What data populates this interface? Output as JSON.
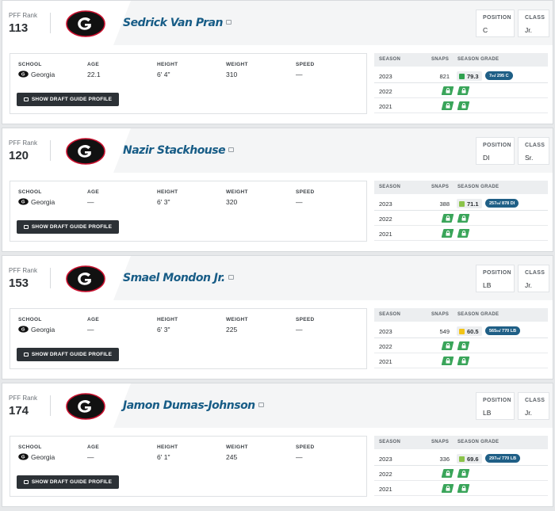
{
  "labels": {
    "pff_rank": "PFF Rank",
    "position": "POSITION",
    "class": "CLASS",
    "school": "SCHOOL",
    "age": "AGE",
    "height": "HEIGHT",
    "weight": "WEIGHT",
    "speed": "SPEED",
    "season": "SEASON",
    "snaps": "SNAPS",
    "season_grade": "SEASON GRADE",
    "draft_button": "SHOW DRAFT GUIDE PROFILE"
  },
  "colors": {
    "name": "#175c86",
    "grade_high": "#2fa14f",
    "grade_mid": "#8bc34a",
    "grade_low": "#f2c417",
    "rank_pill": "#1f5f86",
    "locked": "#3aa55a"
  },
  "players": [
    {
      "rank": "113",
      "name": "Sedrick Van Pran",
      "position": "C",
      "class": "Jr.",
      "school": "Georgia",
      "age": "22.1",
      "height": "6' 4\"",
      "weight": "310",
      "speed": "—",
      "seasons": [
        {
          "year": "2023",
          "snaps": "821",
          "grade": "79.3",
          "grade_color": "#2fa14f",
          "rank_num": "7",
          "rank_sup": "th",
          "rank_rest": " / 295 C"
        },
        {
          "year": "2022",
          "locked": true
        },
        {
          "year": "2021",
          "locked": true
        }
      ]
    },
    {
      "rank": "120",
      "name": "Nazir Stackhouse",
      "position": "DI",
      "class": "Sr.",
      "school": "Georgia",
      "age": "—",
      "height": "6' 3\"",
      "weight": "320",
      "speed": "—",
      "seasons": [
        {
          "year": "2023",
          "snaps": "388",
          "grade": "71.1",
          "grade_color": "#8bc34a",
          "rank_num": "257",
          "rank_sup": "th",
          "rank_rest": " / 878 DI"
        },
        {
          "year": "2022",
          "locked": true
        },
        {
          "year": "2021",
          "locked": true
        }
      ]
    },
    {
      "rank": "153",
      "name": "Smael Mondon Jr.",
      "position": "LB",
      "class": "Jr.",
      "school": "Georgia",
      "age": "—",
      "height": "6' 3\"",
      "weight": "225",
      "speed": "—",
      "seasons": [
        {
          "year": "2023",
          "snaps": "549",
          "grade": "60.5",
          "grade_color": "#f2c417",
          "rank_num": "565",
          "rank_sup": "th",
          "rank_rest": " / 770 LB"
        },
        {
          "year": "2022",
          "locked": true
        },
        {
          "year": "2021",
          "locked": true
        }
      ]
    },
    {
      "rank": "174",
      "name": "Jamon Dumas-Johnson",
      "position": "LB",
      "class": "Jr.",
      "school": "Georgia",
      "age": "—",
      "height": "6' 1\"",
      "weight": "245",
      "speed": "—",
      "seasons": [
        {
          "year": "2023",
          "snaps": "336",
          "grade": "69.6",
          "grade_color": "#8bc34a",
          "rank_num": "297",
          "rank_sup": "th",
          "rank_rest": " / 770 LB"
        },
        {
          "year": "2022",
          "locked": true
        },
        {
          "year": "2021",
          "locked": true
        }
      ]
    }
  ]
}
